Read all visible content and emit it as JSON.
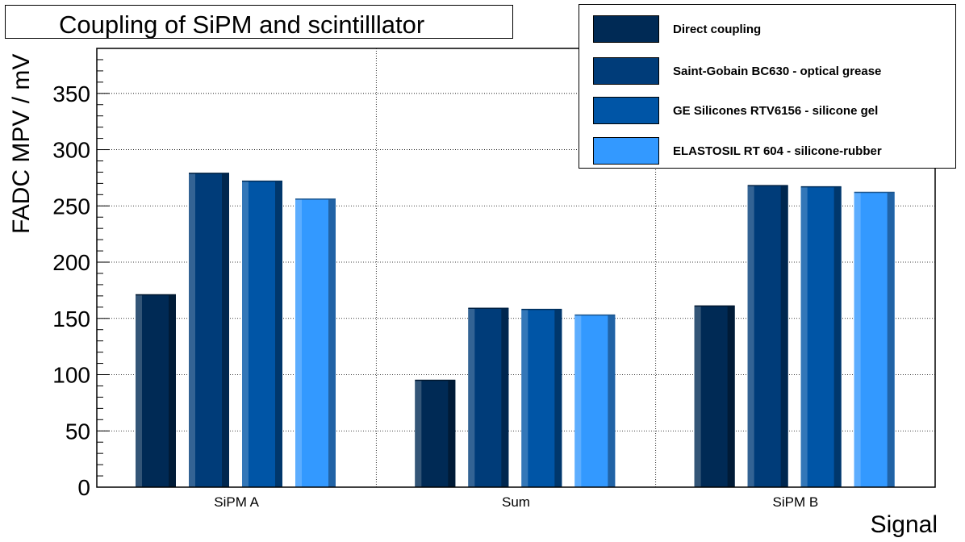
{
  "chart_data": {
    "type": "bar",
    "title": "Coupling of SiPM and scintilllator",
    "xlabel": "Signal",
    "ylabel": "FADC MPV / mV",
    "categories": [
      "SiPM A",
      "Sum",
      "SiPM B"
    ],
    "ylim": [
      0,
      390
    ],
    "yticks": [
      0,
      50,
      100,
      150,
      200,
      250,
      300,
      350
    ],
    "grid": true,
    "legend_position": "top-right",
    "series": [
      {
        "name": "Direct coupling",
        "values": [
          171,
          95,
          161
        ],
        "color": "#002a55"
      },
      {
        "name": "Saint-Gobain BC630 - optical grease",
        "values": [
          279,
          159,
          268
        ],
        "color": "#003c79"
      },
      {
        "name": "GE Silicones RTV6156 - silicone gel",
        "values": [
          272,
          158,
          267
        ],
        "color": "#0055a6"
      },
      {
        "name": "ELASTOSIL RT 604 - silicone-rubber",
        "values": [
          256,
          153,
          262
        ],
        "color": "#3399ff"
      }
    ]
  }
}
